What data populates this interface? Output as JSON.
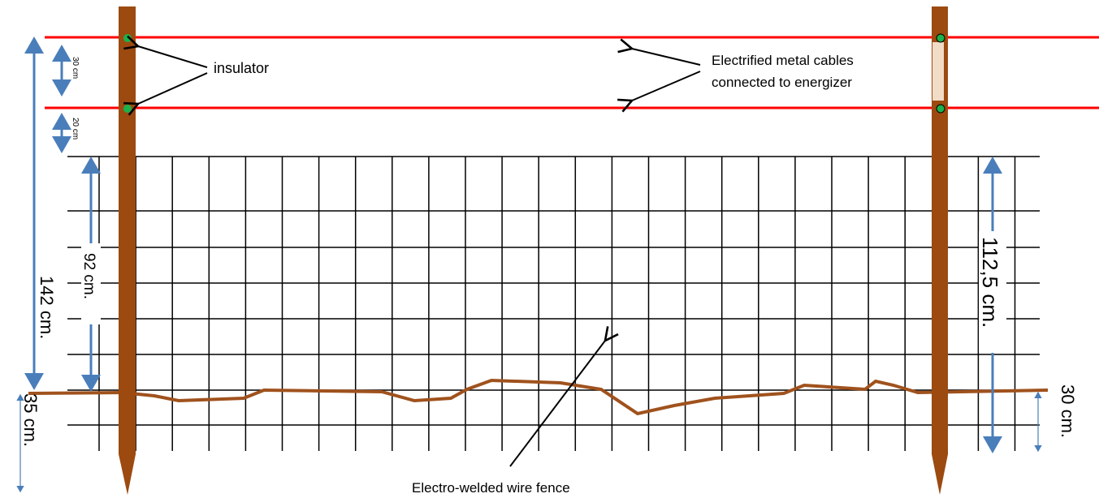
{
  "labels": {
    "insulator": "insulator",
    "cables_line1": "Electrified  metal cables",
    "cables_line2": "connected to energizer",
    "fence": "Electro-welded wire fence"
  },
  "dimensions": {
    "top_gap": "30 cm",
    "second_gap": "20 cm",
    "total_height": "142 cm.",
    "mesh_height_left": "92 cm.",
    "mesh_height_right": "112,5 cm.",
    "buried_left": "35 cm.",
    "buried_right": "30 cm."
  }
}
